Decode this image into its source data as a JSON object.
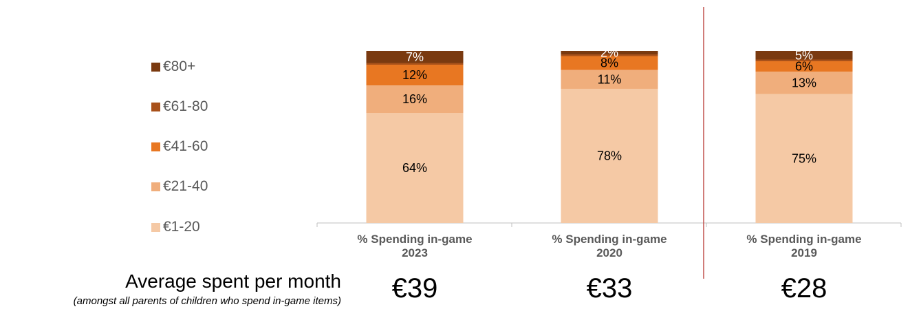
{
  "chart_data": {
    "type": "bar",
    "stacked": true,
    "categories": [
      "% Spending in-game 2023",
      "% Spending in-game 2020",
      "% Spending in-game 2019"
    ],
    "category_lines": [
      [
        "% Spending in-game",
        "2023"
      ],
      [
        "% Spending in-game",
        "2020"
      ],
      [
        "% Spending in-game",
        "2019"
      ]
    ],
    "series": [
      {
        "name": "€1-20",
        "values": [
          64,
          78,
          75
        ],
        "labels": [
          "64%",
          "78%",
          "75%"
        ],
        "color": "#F5C9A5"
      },
      {
        "name": "€21-40",
        "values": [
          16,
          11,
          13
        ],
        "labels": [
          "16%",
          "11%",
          "13%"
        ],
        "color": "#F0AE7C"
      },
      {
        "name": "€41-60",
        "values": [
          12,
          8,
          6
        ],
        "labels": [
          "12%",
          "8%",
          "6%"
        ],
        "color": "#E87722"
      },
      {
        "name": "€61-80",
        "values": [
          1,
          1,
          1
        ],
        "labels": [
          "",
          "",
          ""
        ],
        "color": "#A8511A"
      },
      {
        "name": "€80+",
        "values": [
          7,
          2,
          5
        ],
        "labels": [
          "7%",
          "2%",
          "5%"
        ],
        "color": "#7A3A10"
      }
    ],
    "legend_position": "left",
    "divider_after_category": 2
  },
  "summary": {
    "title": "Average spent per month",
    "note": "(amongst all parents of children who spend in-game items)",
    "values": [
      "€39",
      "€33",
      "€28"
    ]
  }
}
